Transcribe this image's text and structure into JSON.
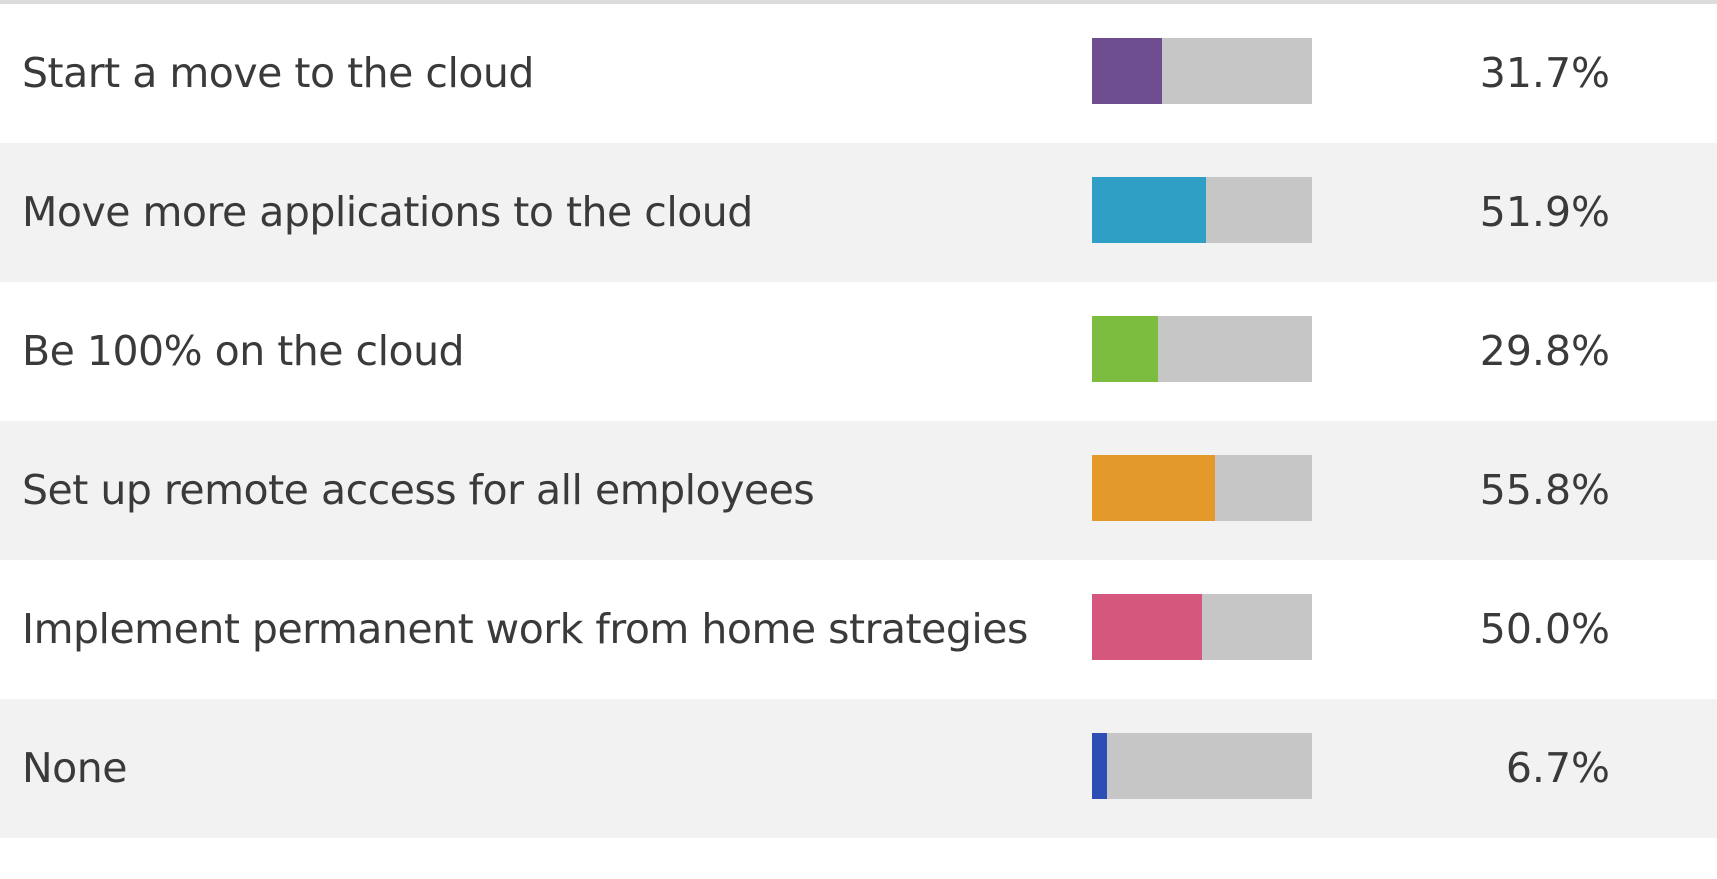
{
  "chart_data": {
    "type": "bar",
    "orientation": "horizontal",
    "categories": [
      "Start a move to the cloud",
      "Move more applications to the cloud",
      "Be 100% on the cloud",
      "Set up remote access for all employees",
      "Implement permanent work from home strategies",
      "None"
    ],
    "values": [
      31.7,
      51.9,
      29.8,
      55.8,
      50.0,
      6.7
    ],
    "value_labels": [
      "31.7%",
      "51.9%",
      "29.8%",
      "55.8%",
      "50.0%",
      "6.7%"
    ],
    "colors": [
      "#6e4e8f",
      "#2f9fc6",
      "#7cbd3f",
      "#e39a2a",
      "#d5577d",
      "#2d4fb5"
    ],
    "track_color": "#c6c6c6",
    "xlim": [
      0,
      100
    ],
    "grid": false
  }
}
